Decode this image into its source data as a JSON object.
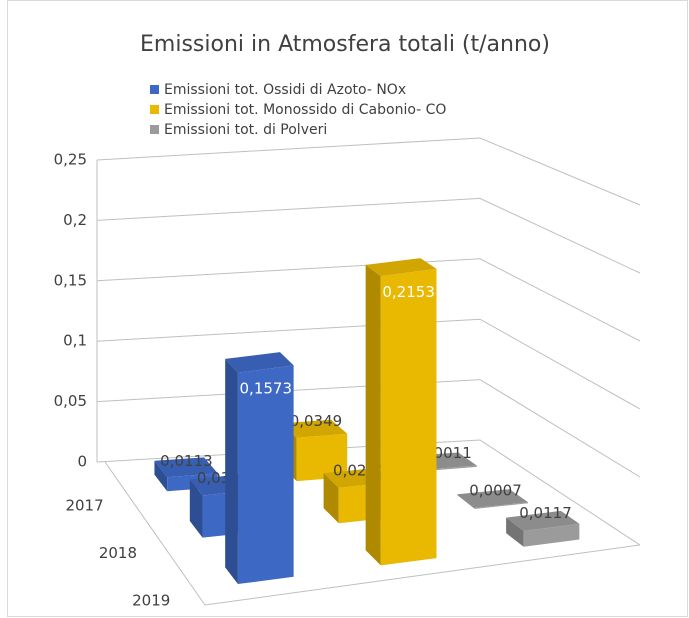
{
  "chart_data": {
    "type": "bar3d",
    "title": "Emissioni in Atmosfera totali (t/anno)",
    "categories": [
      "2017",
      "2018",
      "2019"
    ],
    "series": [
      {
        "name": "Emissioni tot. Ossidi di Azoto- NOx",
        "color": "#3d68c4",
        "values": [
          0.0113,
          0.0326,
          0.1573
        ],
        "value_labels": [
          "0,0113",
          "0,0326",
          "0,1573"
        ]
      },
      {
        "name": "Emissioni tot. Monossido di Cabonio- CO",
        "color": "#e9b800",
        "values": [
          0.0349,
          0.0274,
          0.2153
        ],
        "value_labels": [
          "0,0349",
          "0,0274",
          "0,2153"
        ]
      },
      {
        "name": "Emissioni tot. di Polveri",
        "color": "#9b9b9b",
        "values": [
          0.0011,
          0.0007,
          0.0117
        ],
        "value_labels": [
          "0,0011",
          "0,0007",
          "0,0117"
        ]
      }
    ],
    "ylim": [
      0,
      0.25
    ],
    "yticks": [
      0,
      {
        "value": 0.05,
        "label": "0,05"
      },
      {
        "value": 0.1,
        "label": "0,1"
      },
      {
        "value": 0.15,
        "label": "0,15"
      },
      {
        "value": 0.2,
        "label": "0,2"
      },
      {
        "value": 0.25,
        "label": "0,25"
      }
    ],
    "legend": "top",
    "grid": true
  }
}
